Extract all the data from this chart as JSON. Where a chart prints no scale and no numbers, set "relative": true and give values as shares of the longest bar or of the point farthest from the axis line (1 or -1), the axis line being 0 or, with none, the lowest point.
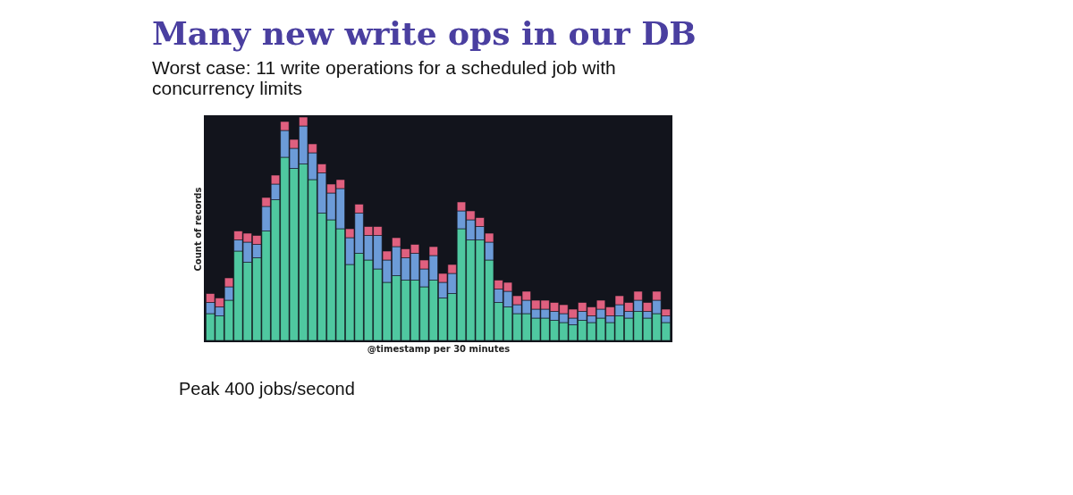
{
  "chart_data": {
    "type": "bar",
    "title": "Many new write ops in our DB",
    "subtitle": "Worst case: 11 write operations for a scheduled job with concurrency limits",
    "xlabel": "@timestamp per 30 minutes",
    "ylabel": "Count of records",
    "annotations": [
      "Peak 400 jobs/second"
    ],
    "relative": true,
    "stacked": true,
    "legend": false,
    "grid": false,
    "categories": [
      null,
      null,
      null,
      null,
      null,
      null,
      null,
      null,
      null,
      null,
      null,
      null,
      null,
      null,
      null,
      null,
      null,
      null,
      null,
      null,
      null,
      null,
      null,
      null,
      null,
      null,
      null,
      null,
      null,
      null,
      null,
      null,
      null,
      null,
      null,
      null,
      null,
      null,
      null,
      null,
      null,
      null,
      null,
      null,
      null,
      null,
      null,
      null,
      null,
      null
    ],
    "series": [
      {
        "color": "#4fc8a0",
        "values": [
          0.12,
          0.11,
          0.18,
          0.4,
          0.35,
          0.37,
          0.49,
          0.63,
          0.82,
          0.77,
          0.79,
          0.72,
          0.57,
          0.54,
          0.5,
          0.34,
          0.39,
          0.36,
          0.32,
          0.26,
          0.29,
          0.27,
          0.27,
          0.24,
          0.27,
          0.19,
          0.21,
          0.5,
          0.45,
          0.45,
          0.36,
          0.17,
          0.15,
          0.12,
          0.12,
          0.1,
          0.1,
          0.09,
          0.08,
          0.07,
          0.09,
          0.08,
          0.1,
          0.08,
          0.11,
          0.1,
          0.13,
          0.1,
          0.12,
          0.08
        ]
      },
      {
        "color": "#6c9bd8",
        "values": [
          0.05,
          0.04,
          0.06,
          0.05,
          0.09,
          0.06,
          0.11,
          0.07,
          0.12,
          0.09,
          0.17,
          0.12,
          0.18,
          0.12,
          0.18,
          0.12,
          0.18,
          0.11,
          0.15,
          0.1,
          0.13,
          0.1,
          0.12,
          0.08,
          0.11,
          0.07,
          0.09,
          0.08,
          0.09,
          0.06,
          0.08,
          0.06,
          0.07,
          0.04,
          0.06,
          0.04,
          0.04,
          0.04,
          0.04,
          0.03,
          0.04,
          0.03,
          0.04,
          0.03,
          0.05,
          0.03,
          0.05,
          0.03,
          0.06,
          0.03
        ]
      },
      {
        "color": "#e0607f",
        "values": [
          0.04,
          0.04,
          0.04,
          0.04,
          0.04,
          0.04,
          0.04,
          0.04,
          0.04,
          0.04,
          0.04,
          0.04,
          0.04,
          0.04,
          0.04,
          0.04,
          0.04,
          0.04,
          0.04,
          0.04,
          0.04,
          0.04,
          0.04,
          0.04,
          0.04,
          0.04,
          0.04,
          0.04,
          0.04,
          0.04,
          0.04,
          0.04,
          0.04,
          0.04,
          0.04,
          0.04,
          0.04,
          0.04,
          0.04,
          0.04,
          0.04,
          0.04,
          0.04,
          0.04,
          0.04,
          0.04,
          0.04,
          0.04,
          0.04,
          0.03
        ]
      }
    ]
  }
}
